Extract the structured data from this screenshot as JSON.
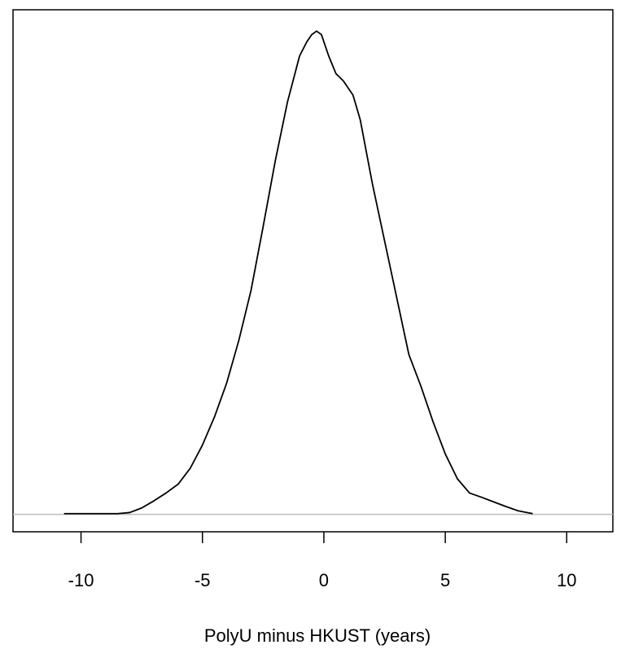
{
  "chart_data": {
    "type": "line",
    "title": "",
    "xlabel": "PolyU minus HKUST (years)",
    "ylabel": "",
    "xlim": [
      -12.8,
      11.9
    ],
    "ylim": [
      -0.0049,
      0.142
    ],
    "x_ticks": [
      "-10",
      "-5",
      "0",
      "5",
      "10"
    ],
    "y_axis_shown": false,
    "baseline": 0,
    "grid": false,
    "series": [
      {
        "x": [
          -10.7,
          -9.5,
          -8.5,
          -8.0,
          -7.5,
          -7.0,
          -6.5,
          -6.0,
          -5.5,
          -5.0,
          -4.5,
          -4.0,
          -3.5,
          -3.0,
          -2.5,
          -2.0,
          -1.5,
          -1.0,
          -0.7,
          -0.5,
          -0.3,
          -0.1,
          0.2,
          0.5,
          0.8,
          1.2,
          1.5,
          2.0,
          2.5,
          3.0,
          3.5,
          4.0,
          4.5,
          5.0,
          5.5,
          6.0,
          6.5,
          7.0,
          7.5,
          8.0,
          8.6
        ],
        "y": [
          0.0002,
          0.0002,
          0.0002,
          0.0005,
          0.0018,
          0.0038,
          0.006,
          0.0085,
          0.013,
          0.0195,
          0.0275,
          0.037,
          0.049,
          0.063,
          0.081,
          0.0995,
          0.116,
          0.129,
          0.133,
          0.135,
          0.136,
          0.135,
          0.129,
          0.124,
          0.122,
          0.118,
          0.111,
          0.093,
          0.077,
          0.061,
          0.045,
          0.036,
          0.026,
          0.017,
          0.01,
          0.006,
          0.0048,
          0.0035,
          0.0022,
          0.001,
          0.0002
        ]
      }
    ]
  }
}
